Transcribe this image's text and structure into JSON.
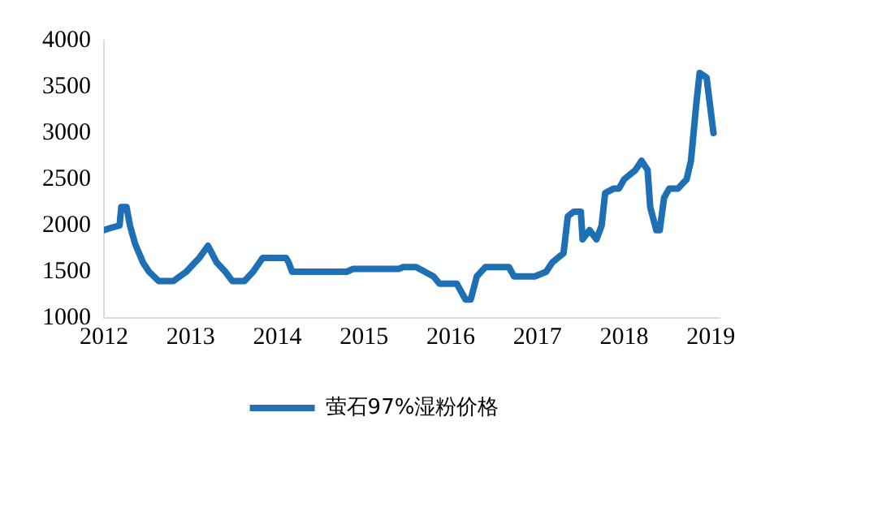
{
  "chart_data": {
    "type": "line",
    "xlim": [
      2012,
      2019.1
    ],
    "xticks": [
      2012,
      2013,
      2014,
      2015,
      2016,
      2017,
      2018,
      2019
    ],
    "ylim": [
      1000,
      4000
    ],
    "yticks": [
      1000,
      1500,
      2000,
      2500,
      3000,
      3500,
      4000
    ],
    "grid": false,
    "legend": "bottom",
    "marker": "none",
    "line_style": "solid",
    "series": [
      {
        "name": "萤石97%湿粉价格",
        "color": "#1f6fb4",
        "x": [
          2012.0,
          2012.1,
          2012.18,
          2012.2,
          2012.26,
          2012.3,
          2012.36,
          2012.45,
          2012.52,
          2012.63,
          2012.8,
          2012.95,
          2013.05,
          2013.1,
          2013.2,
          2013.3,
          2013.4,
          2013.48,
          2013.62,
          2013.72,
          2013.83,
          2014.1,
          2014.13,
          2014.17,
          2014.8,
          2014.87,
          2015.4,
          2015.45,
          2015.6,
          2015.8,
          2015.87,
          2016.07,
          2016.17,
          2016.23,
          2016.3,
          2016.4,
          2016.67,
          2016.73,
          2016.97,
          2017.1,
          2017.17,
          2017.3,
          2017.35,
          2017.42,
          2017.5,
          2017.52,
          2017.6,
          2017.68,
          2017.74,
          2017.78,
          2017.88,
          2017.94,
          2018.0,
          2018.13,
          2018.2,
          2018.27,
          2018.3,
          2018.37,
          2018.41,
          2018.46,
          2018.52,
          2018.62,
          2018.72,
          2018.77,
          2018.83,
          2018.87,
          2018.95,
          2019.03
        ],
        "values": [
          1950,
          1980,
          2000,
          2200,
          2200,
          2000,
          1800,
          1600,
          1500,
          1400,
          1400,
          1500,
          1600,
          1650,
          1780,
          1600,
          1500,
          1400,
          1400,
          1500,
          1650,
          1650,
          1600,
          1500,
          1500,
          1530,
          1530,
          1550,
          1550,
          1450,
          1370,
          1370,
          1200,
          1200,
          1450,
          1550,
          1550,
          1450,
          1450,
          1500,
          1600,
          1700,
          2100,
          2150,
          2150,
          1850,
          1950,
          1850,
          2000,
          2350,
          2400,
          2400,
          2500,
          2600,
          2700,
          2600,
          2200,
          1950,
          1950,
          2300,
          2400,
          2400,
          2500,
          2700,
          3300,
          3650,
          3600,
          3000
        ]
      }
    ]
  }
}
